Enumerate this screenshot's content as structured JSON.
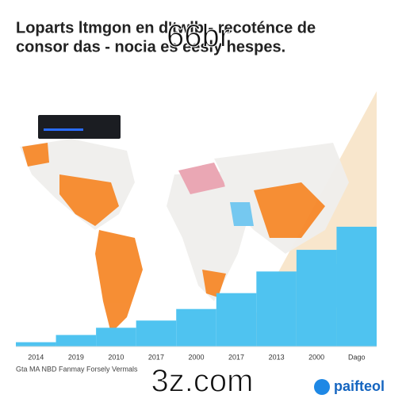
{
  "header": {
    "title_line1": "Loparts ltmgon en d'twlb - recoténce de",
    "title_line2": "consor das - nocia es eesly hespes."
  },
  "watermark": "66br",
  "chart_data": {
    "type": "bar",
    "categories": [
      "2014",
      "2019",
      "2010",
      "2017",
      "2000",
      "2017",
      "2013",
      "2000",
      "Dago"
    ],
    "values": [
      3,
      8,
      13,
      18,
      26,
      37,
      52,
      67,
      83
    ],
    "color": "#4fc3f0",
    "ylim": [
      0,
      100
    ]
  },
  "footer": {
    "source": "Gta MA NBD Fanmay Forsely Vermals",
    "site": "3z.com",
    "logo": "paifteol"
  }
}
